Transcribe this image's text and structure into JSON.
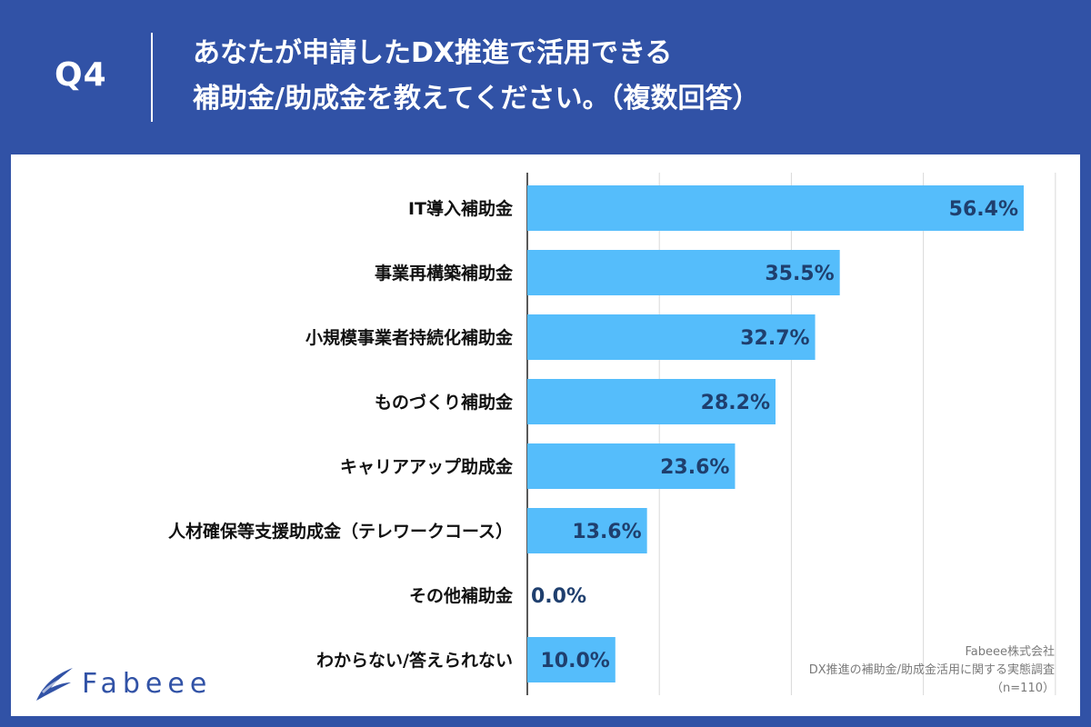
{
  "header": {
    "q_label": "Q4",
    "title_line1": "あなたが申請したDX推進で活用できる",
    "title_line2": "補助金/助成金を教えてください。（複数回答）"
  },
  "colors": {
    "background": "#3152a6",
    "bar": "#55bdfb",
    "value_text": "#1f3f6e",
    "label_text": "#111111",
    "grid": "#d9d9d9"
  },
  "logo": {
    "text": "Fabeee",
    "icon": "wing-logo-icon"
  },
  "source": {
    "line1": "Fabeee株式会社",
    "line2": "DX推進の補助金/助成金活用に関する実態調査",
    "line3": "（n=110）"
  },
  "chart_data": {
    "type": "bar",
    "orientation": "horizontal",
    "categories": [
      "IT導入補助金",
      "事業再構築補助金",
      "小規模事業者持続化補助金",
      "ものづくり補助金",
      "キャリアアップ助成金",
      "人材確保等支援助成金（テレワークコース）",
      "その他補助金",
      "わからない/答えられない"
    ],
    "values": [
      56.4,
      35.5,
      32.7,
      28.2,
      23.6,
      13.6,
      0.0,
      10.0
    ],
    "value_labels": [
      "56.4%",
      "35.5%",
      "32.7%",
      "28.2%",
      "23.6%",
      "13.6%",
      "0.0%",
      "10.0%"
    ],
    "xlim": [
      0,
      60
    ],
    "grid": true,
    "legend": "none"
  }
}
